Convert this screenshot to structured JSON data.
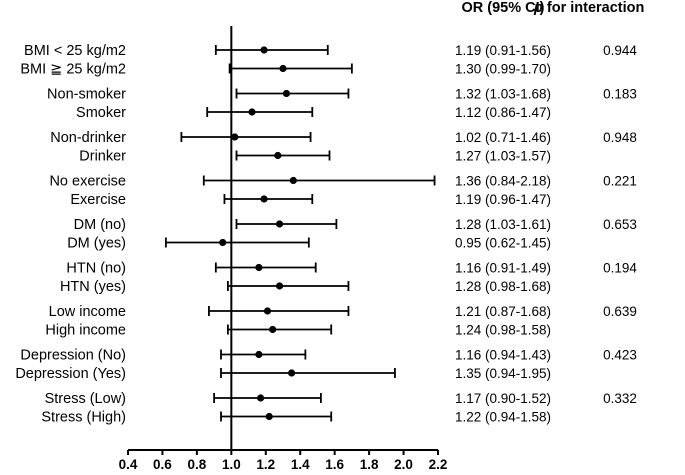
{
  "chart_data": {
    "type": "forest",
    "title": "",
    "xlabel": "",
    "ylabel": "",
    "xlim": [
      0.4,
      2.2
    ],
    "xticks": [
      "0.4",
      "0.6",
      "0.8",
      "1.0",
      "1.2",
      "1.4",
      "1.6",
      "1.8",
      "2.0",
      "2.2"
    ],
    "reference_line": 1.0,
    "headers": {
      "ci": "OR (95% CI)",
      "p_bold": "p",
      "p_rest": " for interaction"
    },
    "groups": [
      {
        "p": "0.944",
        "rows": [
          {
            "label": "BMI < 25 kg/m2",
            "or": 1.19,
            "low": 0.91,
            "high": 1.56,
            "text": "1.19 (0.91-1.56)"
          },
          {
            "label": "BMI ≧ 25 kg/m2",
            "or": 1.3,
            "low": 0.99,
            "high": 1.7,
            "text": "1.30 (0.99-1.70)"
          }
        ]
      },
      {
        "p": "0.183",
        "rows": [
          {
            "label": "Non-smoker",
            "or": 1.32,
            "low": 1.03,
            "high": 1.68,
            "text": "1.32 (1.03-1.68)"
          },
          {
            "label": "Smoker",
            "or": 1.12,
            "low": 0.86,
            "high": 1.47,
            "text": "1.12 (0.86-1.47)"
          }
        ]
      },
      {
        "p": "0.948",
        "rows": [
          {
            "label": "Non-drinker",
            "or": 1.02,
            "low": 0.71,
            "high": 1.46,
            "text": "1.02 (0.71-1.46)"
          },
          {
            "label": "Drinker",
            "or": 1.27,
            "low": 1.03,
            "high": 1.57,
            "text": "1.27 (1.03-1.57)"
          }
        ]
      },
      {
        "p": "0.221",
        "rows": [
          {
            "label": "No exercise",
            "or": 1.36,
            "low": 0.84,
            "high": 2.18,
            "text": "1.36 (0.84-2.18)"
          },
          {
            "label": "Exercise",
            "or": 1.19,
            "low": 0.96,
            "high": 1.47,
            "text": "1.19 (0.96-1.47)"
          }
        ]
      },
      {
        "p": "0.653",
        "rows": [
          {
            "label": "DM (no)",
            "or": 1.28,
            "low": 1.03,
            "high": 1.61,
            "text": "1.28 (1.03-1.61)"
          },
          {
            "label": "DM (yes)",
            "or": 0.95,
            "low": 0.62,
            "high": 1.45,
            "text": "0.95 (0.62-1.45)"
          }
        ]
      },
      {
        "p": "0.194",
        "rows": [
          {
            "label": "HTN (no)",
            "or": 1.16,
            "low": 0.91,
            "high": 1.49,
            "text": "1.16 (0.91-1.49)"
          },
          {
            "label": "HTN (yes)",
            "or": 1.28,
            "low": 0.98,
            "high": 1.68,
            "text": "1.28 (0.98-1.68)"
          }
        ]
      },
      {
        "p": "0.639",
        "rows": [
          {
            "label": "Low income",
            "or": 1.21,
            "low": 0.87,
            "high": 1.68,
            "text": "1.21 (0.87-1.68)"
          },
          {
            "label": "High income",
            "or": 1.24,
            "low": 0.98,
            "high": 1.58,
            "text": "1.24 (0.98-1.58)"
          }
        ]
      },
      {
        "p": "0.423",
        "rows": [
          {
            "label": "Depression (No)",
            "or": 1.16,
            "low": 0.94,
            "high": 1.43,
            "text": "1.16 (0.94-1.43)"
          },
          {
            "label": "Depression (Yes)",
            "or": 1.35,
            "low": 0.94,
            "high": 1.95,
            "text": "1.35 (0.94-1.95)"
          }
        ]
      },
      {
        "p": "0.332",
        "rows": [
          {
            "label": "Stress (Low)",
            "or": 1.17,
            "low": 0.9,
            "high": 1.52,
            "text": "1.17 (0.90-1.52)"
          },
          {
            "label": "Stress (High)",
            "or": 1.22,
            "low": 0.94,
            "high": 1.58,
            "text": "1.22 (0.94-1.58)"
          }
        ]
      }
    ]
  },
  "colors": {
    "ink": "#000000",
    "background": "#ffffff"
  }
}
